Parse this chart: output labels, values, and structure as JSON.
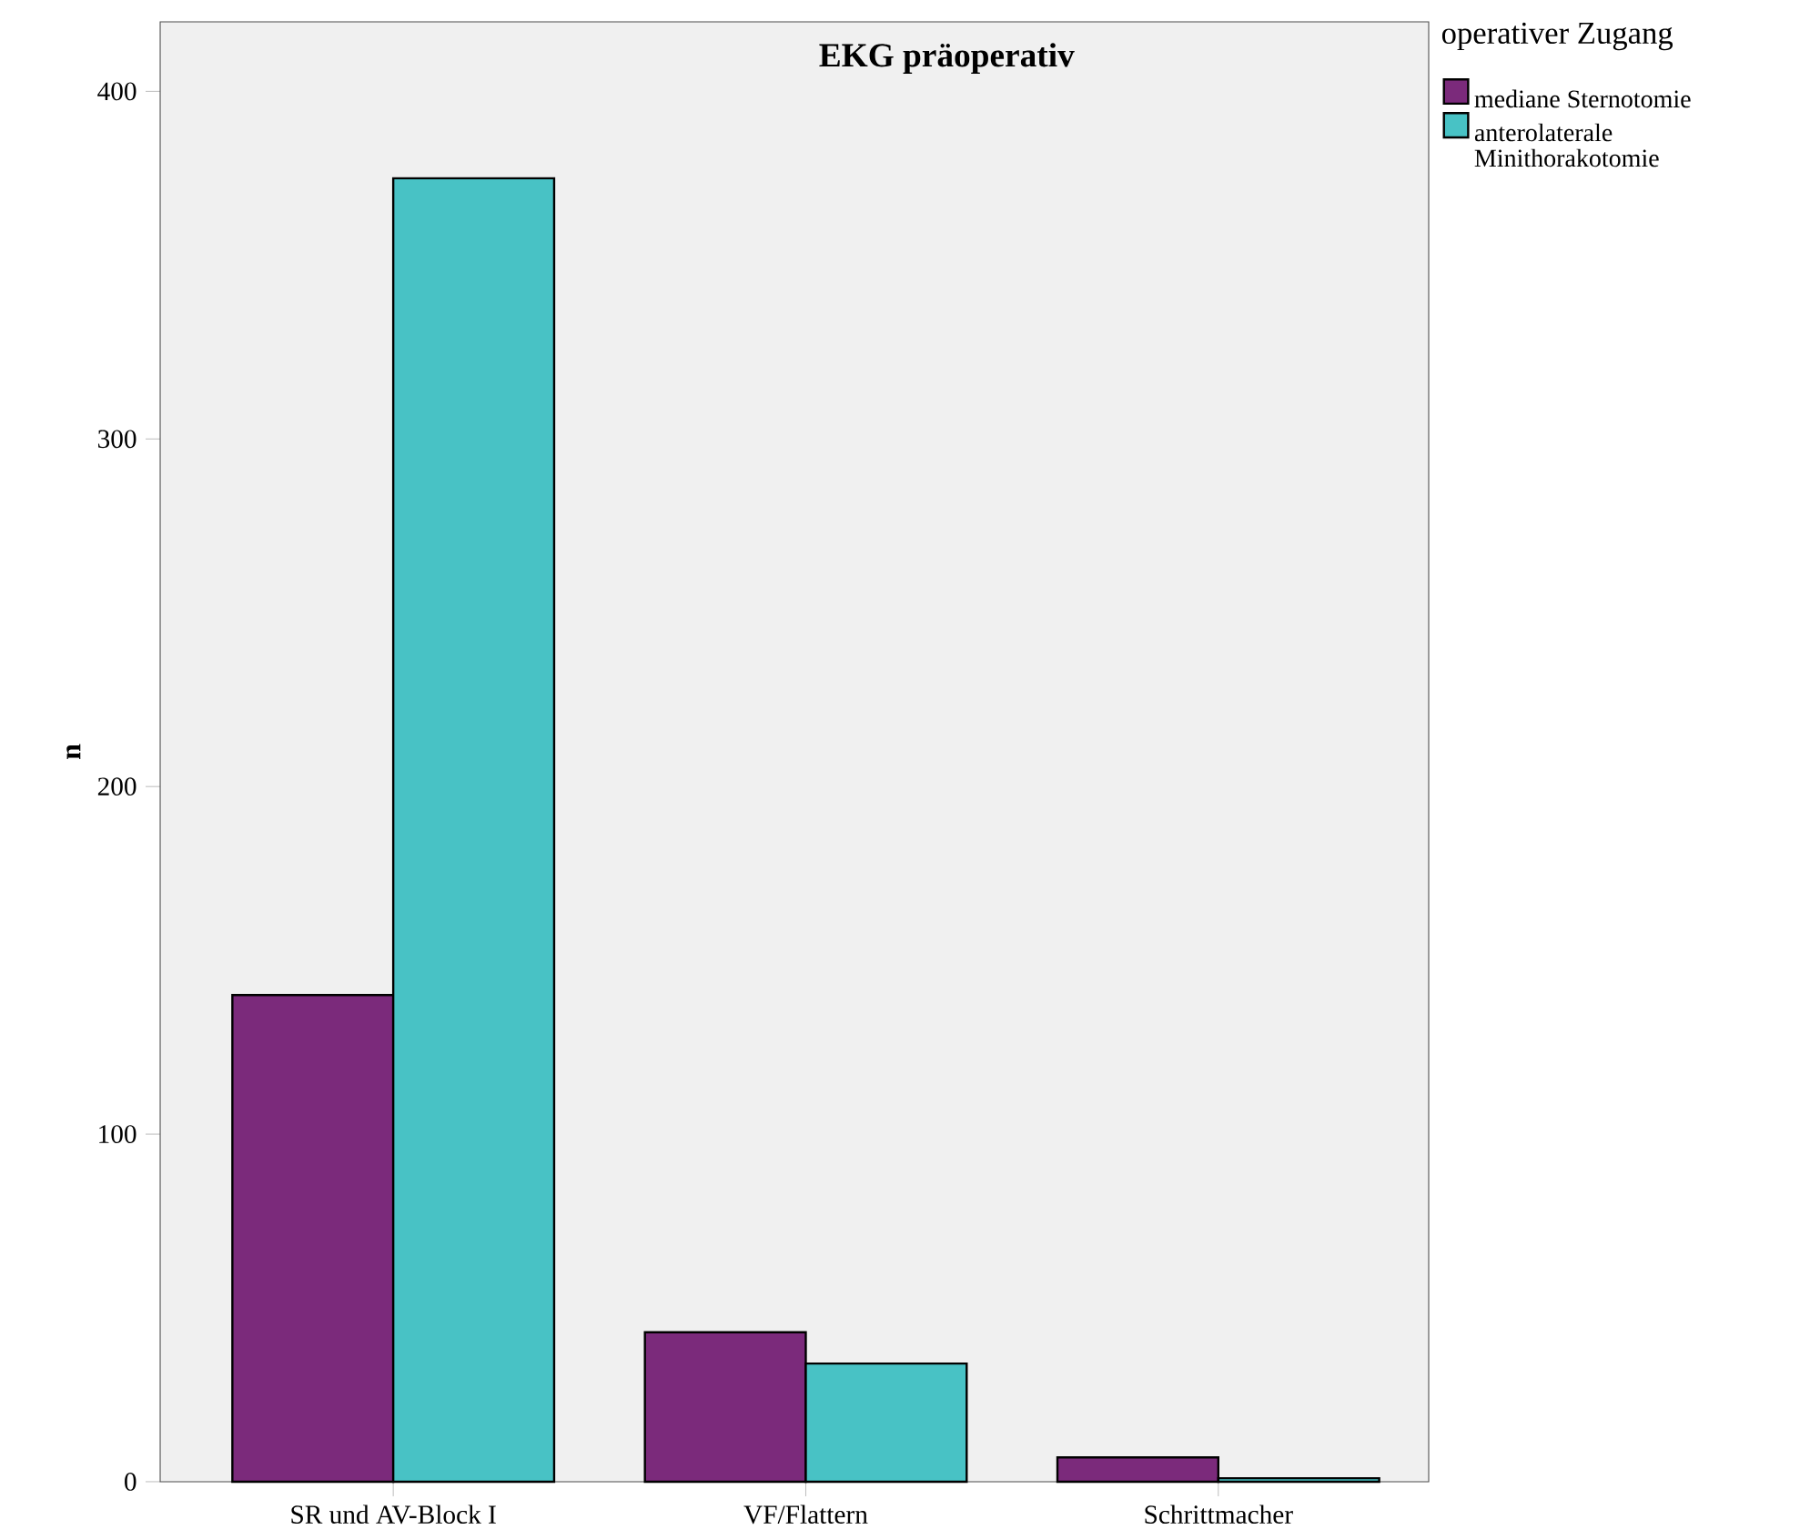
{
  "chart_data": {
    "type": "bar",
    "title": "EKG präoperativ",
    "ylabel": "n",
    "legend_title": "operativer Zugang",
    "categories": [
      "SR und AV-Block I",
      "VF/Flattern",
      "Schrittmacher"
    ],
    "series": [
      {
        "name": "mediane Sternotomie",
        "color": "#7b2a7b",
        "values": [
          140,
          43,
          7
        ]
      },
      {
        "name": "anterolaterale Minithorakotomie",
        "color": "#48c2c5",
        "values": [
          375,
          34,
          1
        ]
      }
    ],
    "ylim": [
      0,
      420
    ],
    "yticks": [
      0,
      100,
      200,
      300,
      400
    ],
    "grid": false,
    "legend": "top right"
  }
}
